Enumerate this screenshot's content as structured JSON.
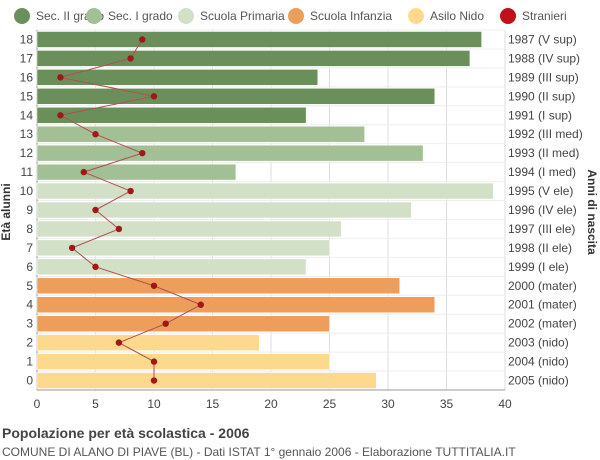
{
  "legend": [
    {
      "label": "Sec. II grado",
      "color": "#6b8f5a"
    },
    {
      "label": "Sec. I grado",
      "color": "#a3bf95"
    },
    {
      "label": "Scuola Primaria",
      "color": "#d3e0c8"
    },
    {
      "label": "Scuola Infanzia",
      "color": "#ec9e5a"
    },
    {
      "label": "Asilo Nido",
      "color": "#fdd98e"
    },
    {
      "label": "Stranieri",
      "color": "#c0101a"
    }
  ],
  "footer": {
    "title": "Popolazione per età scolastica - 2006",
    "subtitle": "COMUNE DI ALANO DI PIAVE (BL) - Dati ISTAT 1° gennaio 2006 - Elaborazione TUTTITALIA.IT"
  },
  "chart_data": {
    "type": "bar",
    "orientation": "horizontal",
    "ylabel": "Età alunni",
    "ylabel_right": "Anni di nascita",
    "xlim": [
      0,
      40
    ],
    "xticks": [
      0,
      5,
      10,
      15,
      20,
      25,
      30,
      35,
      40
    ],
    "grid": true,
    "legend_position": "top",
    "categories": [
      "18",
      "17",
      "16",
      "15",
      "14",
      "13",
      "12",
      "11",
      "10",
      "9",
      "8",
      "7",
      "6",
      "5",
      "4",
      "3",
      "2",
      "1",
      "0"
    ],
    "birth_years": [
      "1987 (V sup)",
      "1988 (IV sup)",
      "1989 (III sup)",
      "1990 (II sup)",
      "1991 (I sup)",
      "1992 (III med)",
      "1993 (II med)",
      "1994 (I med)",
      "1995 (V ele)",
      "1996 (IV ele)",
      "1997 (III ele)",
      "1998 (II ele)",
      "1999 (I ele)",
      "2000 (mater)",
      "2001 (mater)",
      "2002 (mater)",
      "2003 (nido)",
      "2004 (nido)",
      "2005 (nido)"
    ],
    "values": [
      38,
      37,
      24,
      34,
      23,
      28,
      33,
      17,
      39,
      32,
      26,
      25,
      23,
      31,
      34,
      25,
      19,
      25,
      29
    ],
    "groups": [
      "Sec. II grado",
      "Sec. II grado",
      "Sec. II grado",
      "Sec. II grado",
      "Sec. II grado",
      "Sec. I grado",
      "Sec. I grado",
      "Sec. I grado",
      "Scuola Primaria",
      "Scuola Primaria",
      "Scuola Primaria",
      "Scuola Primaria",
      "Scuola Primaria",
      "Scuola Infanzia",
      "Scuola Infanzia",
      "Scuola Infanzia",
      "Asilo Nido",
      "Asilo Nido",
      "Asilo Nido"
    ],
    "stranieri": [
      9,
      8,
      2,
      10,
      2,
      5,
      9,
      4,
      8,
      5,
      7,
      3,
      5,
      10,
      14,
      11,
      7,
      10,
      10
    ]
  }
}
